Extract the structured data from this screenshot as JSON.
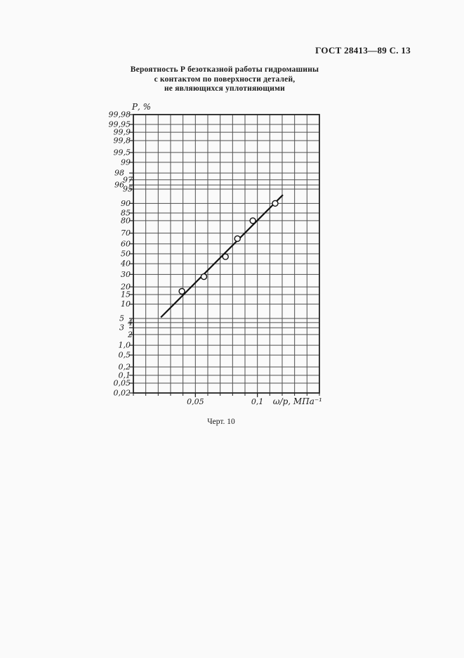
{
  "page": {
    "header": "ГОСТ 28413—89 С. 13",
    "title_lines": [
      "Вероятность Р безотказной работы гидромашины",
      "с контактом по поверхности деталей,",
      "не являющихся уплотняющими"
    ],
    "caption": "Черт. 10"
  },
  "chart_data": {
    "type": "scatter",
    "title": "Вероятность Р безотказной работы гидромашины с контактом по поверхности деталей, не являющихся уплотняющими",
    "caption": "Черт. 10",
    "xlabel": "ω/p, МПа⁻¹",
    "ylabel": "Р, %",
    "x_scale": "log",
    "y_scale": "normal-probability",
    "xlim": [
      0.025,
      0.2
    ],
    "ylim_percent": [
      0.02,
      99.98
    ],
    "grid": true,
    "x_gridline_count": 16,
    "x_ticks": [
      {
        "value": 0.05,
        "label": "0,05"
      },
      {
        "value": 0.1,
        "label": "0,1"
      }
    ],
    "y_ticks": [
      {
        "p": 99.98,
        "label": "99,98"
      },
      {
        "p": 99.95,
        "label": "99,95"
      },
      {
        "p": 99.9,
        "label": "99,9"
      },
      {
        "p": 99.8,
        "label": "99,8"
      },
      {
        "p": 99.5,
        "label": "99,5"
      },
      {
        "p": 99,
        "label": "99"
      },
      {
        "p": 98,
        "label": "98",
        "dx": -9
      },
      {
        "p": 97,
        "label": "97",
        "dx": 3
      },
      {
        "p": 96,
        "label": "96",
        "dx": -9
      },
      {
        "p": 95,
        "label": "95",
        "dx": 3
      },
      {
        "p": 90,
        "label": "90"
      },
      {
        "p": 85,
        "label": "85"
      },
      {
        "p": 80,
        "label": "80"
      },
      {
        "p": 70,
        "label": "70"
      },
      {
        "p": 60,
        "label": "60"
      },
      {
        "p": 50,
        "label": "50"
      },
      {
        "p": 40,
        "label": "40"
      },
      {
        "p": 30,
        "label": "30"
      },
      {
        "p": 20,
        "label": "20"
      },
      {
        "p": 15,
        "label": "15"
      },
      {
        "p": 10,
        "label": "10"
      },
      {
        "p": 5,
        "label": "5",
        "dx": -9
      },
      {
        "p": 4,
        "label": "4",
        "dx": 3
      },
      {
        "p": 3,
        "label": "3",
        "dx": -9
      },
      {
        "p": 2,
        "label": "2",
        "dx": 3
      },
      {
        "p": 1.0,
        "label": "1,0"
      },
      {
        "p": 0.5,
        "label": "0,5"
      },
      {
        "p": 0.2,
        "label": "0,2"
      },
      {
        "p": 0.1,
        "label": "0,1"
      },
      {
        "p": 0.05,
        "label": "0,05"
      },
      {
        "p": 0.02,
        "label": "0,02"
      }
    ],
    "points": [
      {
        "x": 0.043,
        "p": 17
      },
      {
        "x": 0.055,
        "p": 28
      },
      {
        "x": 0.07,
        "p": 47
      },
      {
        "x": 0.08,
        "p": 65
      },
      {
        "x": 0.095,
        "p": 80
      },
      {
        "x": 0.122,
        "p": 90
      }
    ],
    "fit_line": {
      "x1": 0.034,
      "p1": 5.3,
      "x2": 0.133,
      "p2": 93.3
    },
    "colors": {
      "grid": "#4f4f4f",
      "border": "#222222",
      "line": "#111111",
      "point_stroke": "#111111",
      "point_fill": "#fafafa",
      "text": "#1b1b1b",
      "paper": "#fafafa"
    }
  }
}
